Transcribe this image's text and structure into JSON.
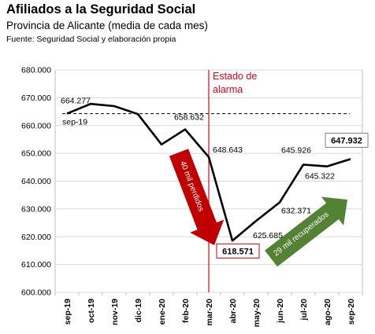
{
  "chart_data": {
    "type": "line",
    "title": "Afiliados a la Seguridad Social",
    "subtitle": "Provincia de Alicante (media de cada mes)",
    "source": "Fuente: Seguridad Social y elaboración propia",
    "categories": [
      "sep-19",
      "oct-19",
      "nov-19",
      "dic-19",
      "ene-20",
      "feb-20",
      "mar-20",
      "abr-20",
      "may-20",
      "jun-20",
      "jul-20",
      "ago-20",
      "sep-20"
    ],
    "series": [
      {
        "values": [
          664277,
          667800,
          667000,
          664100,
          653200,
          658632,
          648643,
          618571,
          625685,
          632371,
          645926,
          645322,
          647932
        ]
      }
    ],
    "ylim": [
      600000,
      680000
    ],
    "yticks": [
      "600.000",
      "610.000",
      "620.000",
      "630.000",
      "640.000",
      "650.000",
      "660.000",
      "670.000",
      "680.000"
    ],
    "grid": "horizontal",
    "reference_line": {
      "value": 664277,
      "label": "sep-19"
    },
    "event_marker": {
      "category": "mar-20",
      "label_line1": "Estado de",
      "label_line2": "alarma",
      "color": "#e0001b"
    },
    "data_labels": {
      "sep19": "664.277",
      "feb20": "658.632",
      "mar20": "648.643",
      "abr20": "618.571",
      "may20": "625.685",
      "jun20": "632.371",
      "jul20": "645.926",
      "ago20": "645.322",
      "sep20": "647.932"
    },
    "annotations": {
      "loss_arrow": {
        "text": "40 mil perdidos",
        "color": "#c00000"
      },
      "gain_arrow": {
        "text": "29 mil recuperados",
        "color": "#548235"
      }
    }
  }
}
